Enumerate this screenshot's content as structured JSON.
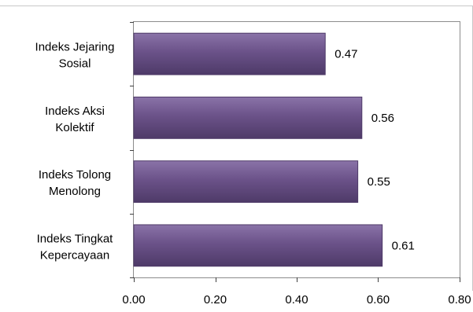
{
  "chart_data": {
    "type": "bar",
    "orientation": "horizontal",
    "categories": [
      [
        "Indeks Jejaring",
        "Sosial"
      ],
      [
        "Indeks Aksi",
        "Kolektif"
      ],
      [
        "Indeks Tolong",
        "Menolong"
      ],
      [
        "Indeks Tingkat",
        "Kepercayaan"
      ]
    ],
    "values": [
      0.47,
      0.56,
      0.55,
      0.61
    ],
    "value_labels": [
      "0.47",
      "0.56",
      "0.55",
      "0.61"
    ],
    "xlim": [
      0,
      0.8
    ],
    "x_ticks": [
      0,
      0.2,
      0.4,
      0.6,
      0.8
    ],
    "x_tick_labels": [
      "0.00",
      "0.20",
      "0.40",
      "0.60",
      "0.80"
    ],
    "title": "",
    "xlabel": "",
    "ylabel": "",
    "grid": false,
    "legend": "none",
    "bar_color": "#6b5289",
    "bar_color_light": "#8a73a8",
    "bar_color_dark": "#4e3a68"
  }
}
